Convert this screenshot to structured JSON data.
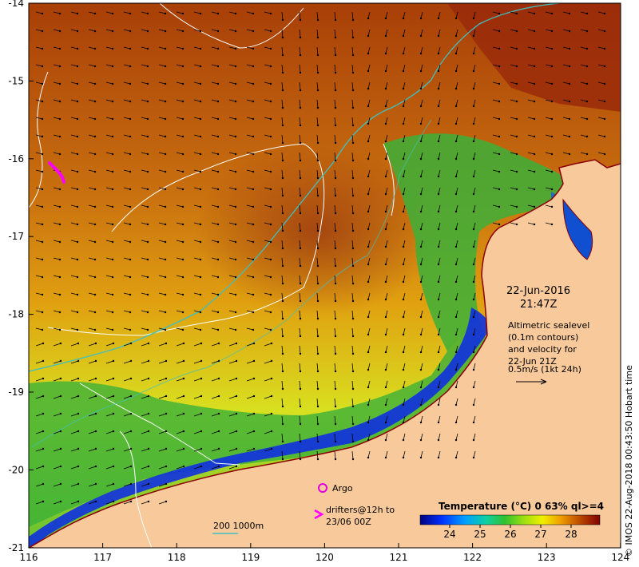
{
  "map": {
    "lon_ticks": [
      "116",
      "117",
      "118",
      "119",
      "120",
      "121",
      "122",
      "123",
      "124"
    ],
    "lat_ticks": [
      "-14",
      "-15",
      "-16",
      "-17",
      "-18",
      "-19",
      "-20",
      "-21"
    ],
    "date_line1": "22-Jun-2016",
    "date_line2": "21:47Z",
    "altimetry_notes": [
      "Altimetric sealevel",
      "(0.1m contours)",
      "and velocity for",
      "22-Jun 21Z",
      "0.5m/s (1kt 24h)"
    ],
    "argo_label": "Argo",
    "drifters_line1": "drifters@12h to",
    "drifters_line2": "23/06 00Z",
    "bathy_label": "200  1000m",
    "colorbar_title": "Temperature (°C) 0 63% ql>=4",
    "colorbar_ticks": [
      "24",
      "25",
      "26",
      "27",
      "28"
    ],
    "credit": "© IMOS 22-Aug-2018 00:43:50 Hobart time",
    "colors": {
      "land": "#f7c99b",
      "coastline": "#8b0000",
      "contour": "#ffffff",
      "bathy_200": "#40c0c0",
      "argo": "#e000e0",
      "drifter": "#ff00ff"
    }
  }
}
